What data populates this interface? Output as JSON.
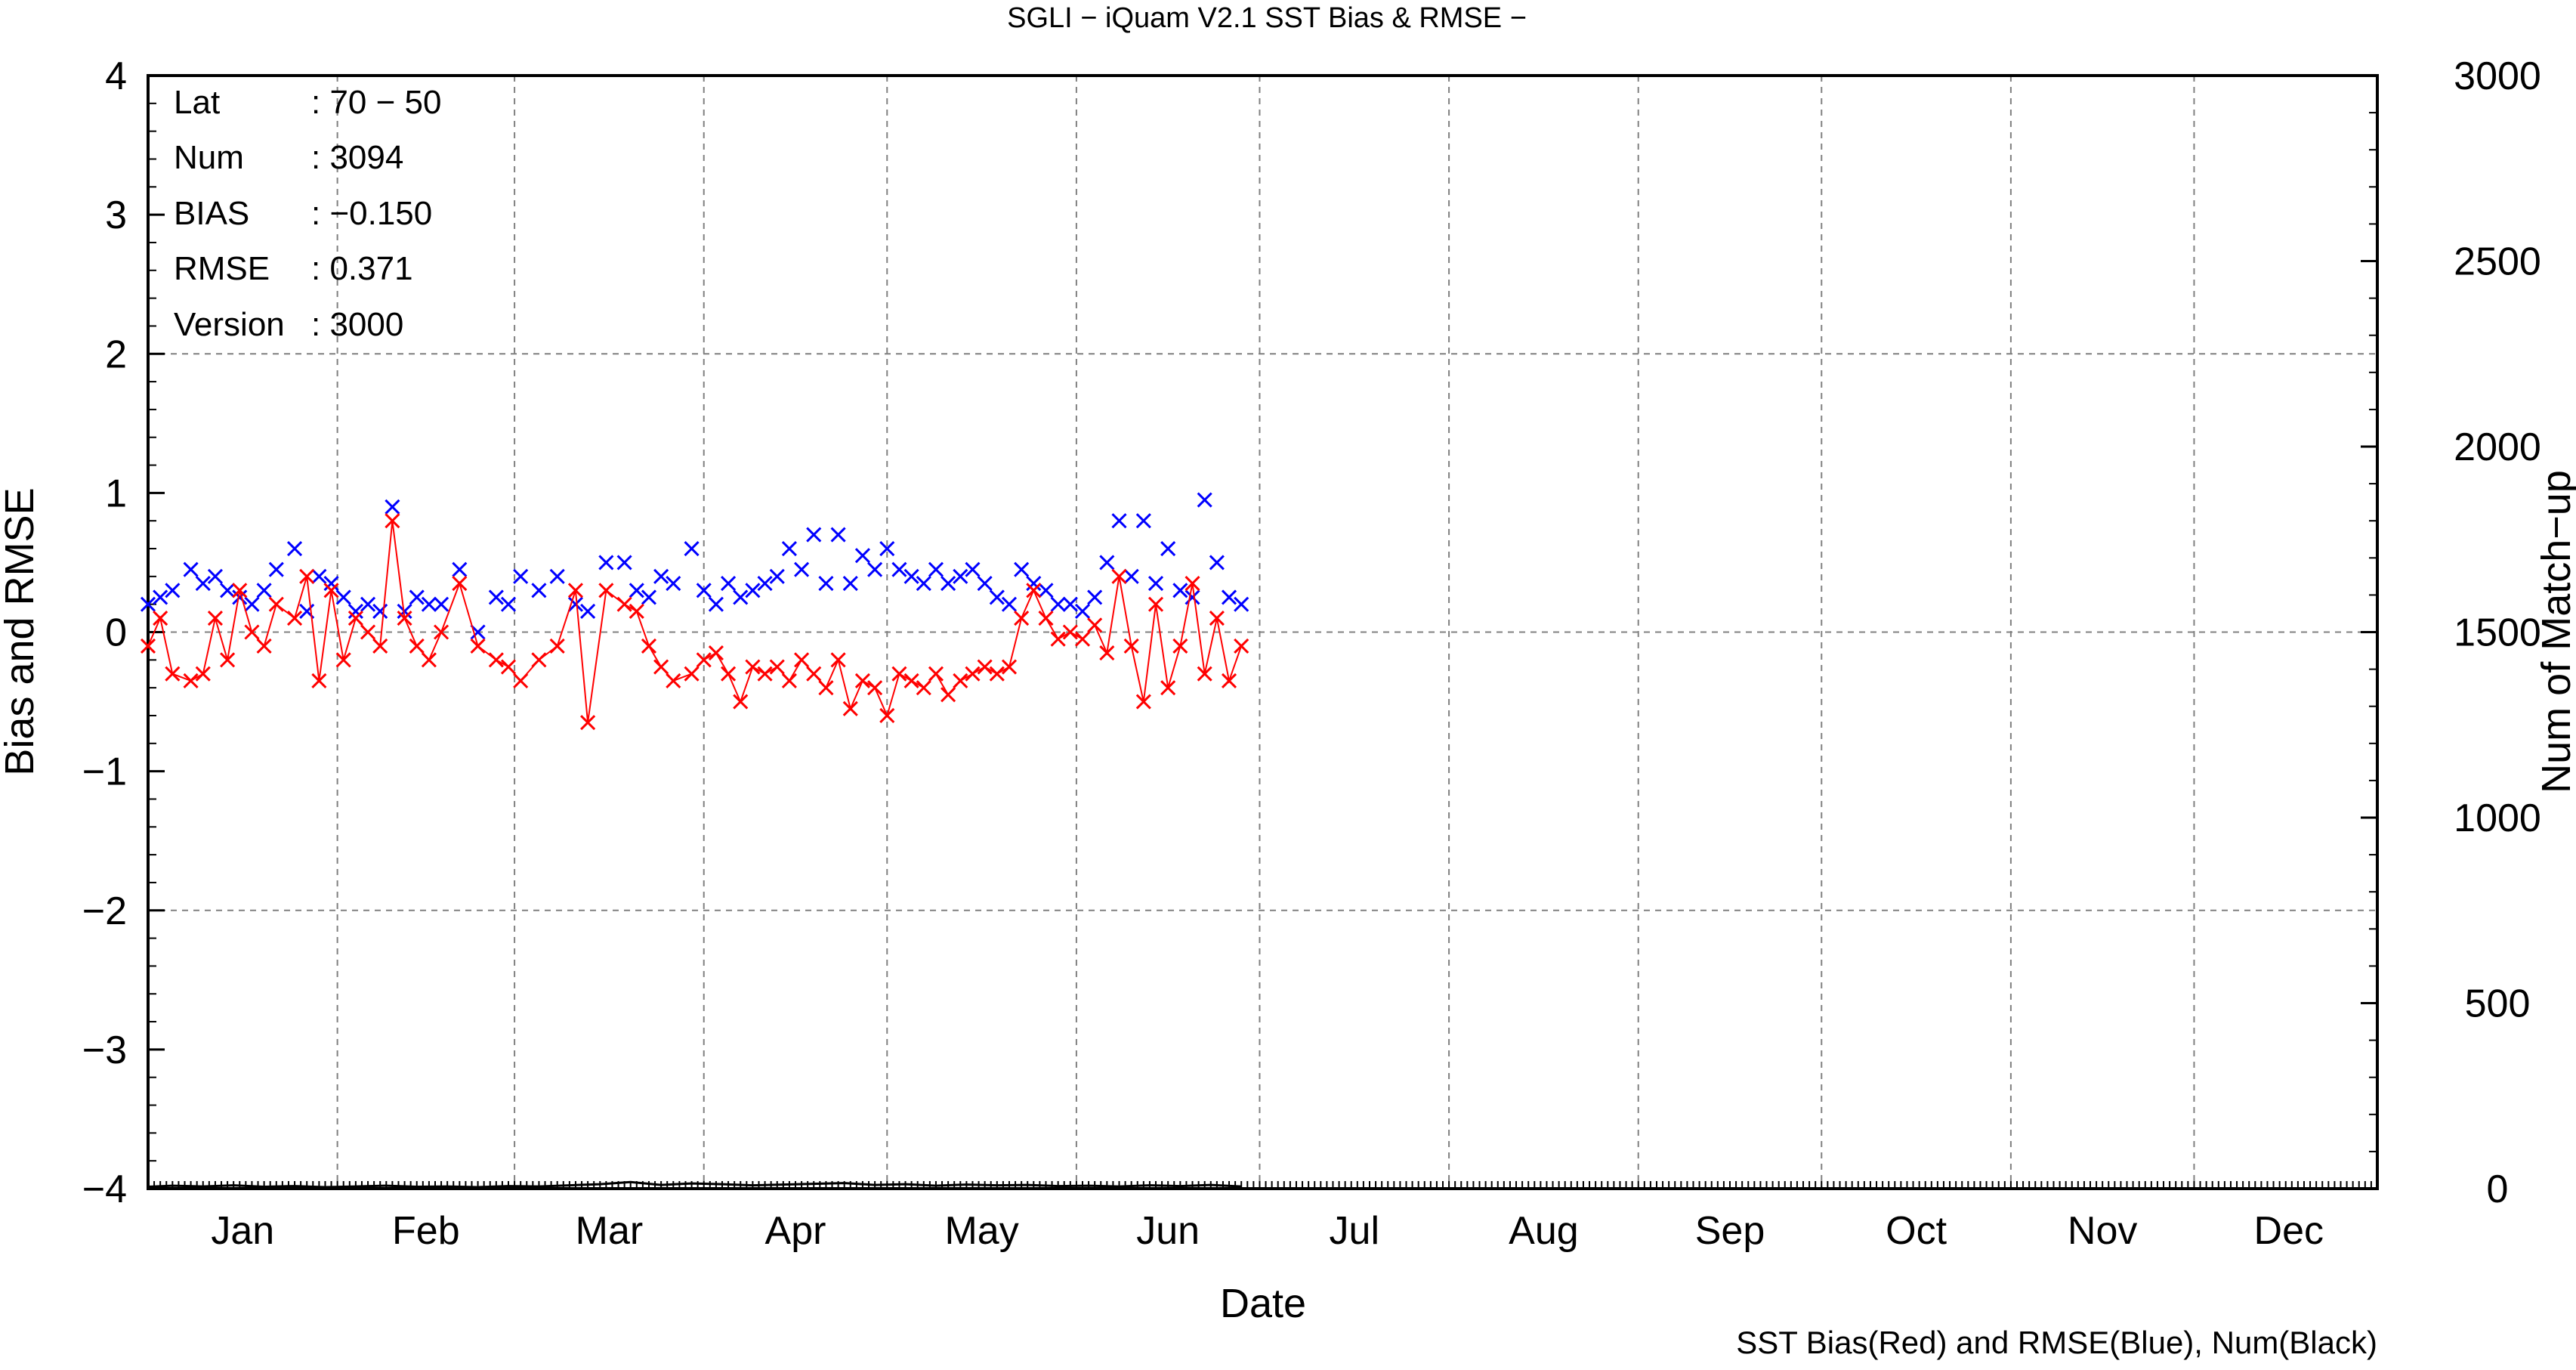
{
  "chart_data": {
    "type": "line",
    "title": "SGLI − iQuam V2.1 SST Bias & RMSE  −",
    "xlabel": "Date",
    "ylabel": "Bias and RMSE",
    "y2label": "Num of Match−up",
    "footnote": "SST Bias(Red) and RMSE(Blue), Num(Black)",
    "ylim": [
      -4,
      4
    ],
    "y2lim": [
      0,
      3000
    ],
    "xlim": [
      1,
      366
    ],
    "y_ticks": [
      "4",
      "3",
      "2",
      "1",
      "0",
      "−1",
      "−2",
      "−3",
      "−4"
    ],
    "y2_ticks": [
      "3000",
      "2500",
      "2000",
      "1500",
      "1000",
      "500",
      "0"
    ],
    "months": [
      "Jan",
      "Feb",
      "Mar",
      "Apr",
      "May",
      "Jun",
      "Jul",
      "Aug",
      "Sep",
      "Oct",
      "Nov",
      "Dec"
    ],
    "grid": true,
    "stats": [
      {
        "label": "Lat",
        "value": ": 70 − 50"
      },
      {
        "label": "Num",
        "value": ": 3094"
      },
      {
        "label": "BIAS",
        "value": ": −0.150"
      },
      {
        "label": "RMSE",
        "value": ": 0.371"
      },
      {
        "label": "Version",
        "value": ": 3000"
      }
    ],
    "colors": {
      "bias": "#ff0000",
      "rmse": "#0000ff",
      "num": "#000000",
      "grid": "#808080"
    },
    "series": [
      {
        "name": "SST Bias(Red)",
        "x": [
          1,
          3,
          5,
          8,
          10,
          12,
          14,
          16,
          18,
          20,
          22,
          25,
          27,
          29,
          31,
          33,
          35,
          37,
          39,
          41,
          43,
          45,
          47,
          49,
          52,
          55,
          58,
          60,
          62,
          65,
          68,
          71,
          73,
          76,
          79,
          81,
          83,
          85,
          87,
          90,
          92,
          94,
          96,
          98,
          100,
          102,
          104,
          106,
          108,
          110,
          112,
          114,
          116,
          118,
          120,
          122,
          124,
          126,
          128,
          130,
          132,
          134,
          136,
          138,
          140,
          142,
          144,
          146,
          148,
          150,
          152,
          154,
          156,
          158,
          160,
          162,
          164,
          166,
          168,
          170,
          172,
          174,
          176,
          178,
          180
        ],
        "y": [
          -0.1,
          0.1,
          -0.3,
          -0.35,
          -0.3,
          0.1,
          -0.2,
          0.3,
          0.0,
          -0.1,
          0.2,
          0.1,
          0.4,
          -0.35,
          0.3,
          -0.2,
          0.1,
          0.0,
          -0.1,
          0.8,
          0.1,
          -0.1,
          -0.2,
          0.0,
          0.35,
          -0.1,
          -0.2,
          -0.25,
          -0.35,
          -0.2,
          -0.1,
          0.3,
          -0.65,
          0.3,
          0.2,
          0.15,
          -0.1,
          -0.25,
          -0.35,
          -0.3,
          -0.2,
          -0.15,
          -0.3,
          -0.5,
          -0.25,
          -0.3,
          -0.25,
          -0.35,
          -0.2,
          -0.3,
          -0.4,
          -0.2,
          -0.55,
          -0.35,
          -0.4,
          -0.6,
          -0.3,
          -0.35,
          -0.4,
          -0.3,
          -0.45,
          -0.35,
          -0.3,
          -0.25,
          -0.3,
          -0.25,
          0.1,
          0.3,
          0.1,
          -0.05,
          0.0,
          -0.05,
          0.05,
          -0.15,
          0.4,
          -0.1,
          -0.5,
          0.2,
          -0.4,
          -0.1,
          0.35,
          -0.3,
          0.1,
          -0.35,
          -0.1
        ]
      },
      {
        "name": "RMSE(Blue)",
        "x": [
          1,
          3,
          5,
          8,
          10,
          12,
          14,
          16,
          18,
          20,
          22,
          25,
          27,
          29,
          31,
          33,
          35,
          37,
          39,
          41,
          43,
          45,
          47,
          49,
          52,
          55,
          58,
          60,
          62,
          65,
          68,
          71,
          73,
          76,
          79,
          81,
          83,
          85,
          87,
          90,
          92,
          94,
          96,
          98,
          100,
          102,
          104,
          106,
          108,
          110,
          112,
          114,
          116,
          118,
          120,
          122,
          124,
          126,
          128,
          130,
          132,
          134,
          136,
          138,
          140,
          142,
          144,
          146,
          148,
          150,
          152,
          154,
          156,
          158,
          160,
          162,
          164,
          166,
          168,
          170,
          172,
          174,
          176,
          178,
          180
        ],
        "y": [
          0.2,
          0.25,
          0.3,
          0.45,
          0.35,
          0.4,
          0.3,
          0.25,
          0.2,
          0.3,
          0.45,
          0.6,
          0.15,
          0.4,
          0.35,
          0.25,
          0.15,
          0.2,
          0.15,
          0.9,
          0.15,
          0.25,
          0.2,
          0.2,
          0.45,
          0.0,
          0.25,
          0.2,
          0.4,
          0.3,
          0.4,
          0.2,
          0.15,
          0.5,
          0.5,
          0.3,
          0.25,
          0.4,
          0.35,
          0.6,
          0.3,
          0.2,
          0.35,
          0.25,
          0.3,
          0.35,
          0.4,
          0.6,
          0.45,
          0.7,
          0.35,
          0.7,
          0.35,
          0.55,
          0.45,
          0.6,
          0.45,
          0.4,
          0.35,
          0.45,
          0.35,
          0.4,
          0.45,
          0.35,
          0.25,
          0.2,
          0.45,
          0.35,
          0.3,
          0.2,
          0.2,
          0.15,
          0.25,
          0.5,
          0.8,
          0.4,
          0.8,
          0.35,
          0.6,
          0.3,
          0.25,
          0.95,
          0.5,
          0.25,
          0.2
        ]
      },
      {
        "name": "Num(Black)",
        "x": [
          1,
          5,
          10,
          15,
          20,
          25,
          30,
          35,
          40,
          45,
          50,
          55,
          60,
          65,
          70,
          75,
          80,
          85,
          90,
          95,
          100,
          105,
          110,
          115,
          120,
          125,
          130,
          135,
          140,
          145,
          150,
          155,
          160,
          165,
          170,
          175,
          180
        ],
        "y": [
          5,
          8,
          6,
          9,
          5,
          7,
          4,
          6,
          8,
          5,
          6,
          4,
          7,
          6,
          9,
          12,
          18,
          10,
          14,
          12,
          9,
          11,
          13,
          15,
          10,
          12,
          8,
          11,
          9,
          10,
          7,
          8,
          6,
          9,
          7,
          10,
          6
        ]
      }
    ]
  }
}
